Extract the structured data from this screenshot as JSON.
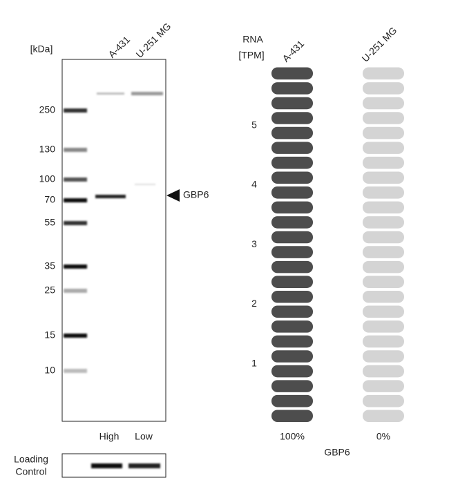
{
  "blot": {
    "unit_label": "[kDa]",
    "lanes": [
      "A-431",
      "U-251 MG"
    ],
    "markers": [
      250,
      130,
      100,
      70,
      55,
      35,
      25,
      15,
      10
    ],
    "target": "GBP6",
    "levels": [
      "High",
      "Low"
    ],
    "loading_control": [
      "Loading",
      "Control"
    ]
  },
  "rna": {
    "title": [
      "RNA",
      "[TPM]"
    ],
    "lanes": [
      "A-431",
      "U-251 MG"
    ],
    "yticks": [
      1,
      2,
      3,
      4,
      5
    ],
    "ylim": [
      0,
      6
    ],
    "values": [
      100,
      0
    ],
    "value_labels": [
      "100%",
      "0%"
    ],
    "gene": "GBP6",
    "colors": [
      "#4d4d4d",
      "#d4d4d4"
    ]
  }
}
